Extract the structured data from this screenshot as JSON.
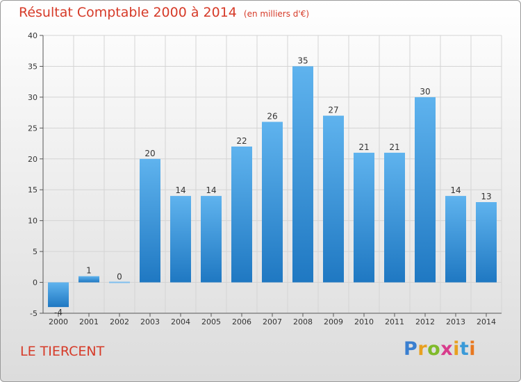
{
  "chart_data": {
    "type": "bar",
    "title": "Résultat Comptable 2000 à 2014",
    "subtitle": "(en milliers d'€)",
    "categories": [
      "2000",
      "2001",
      "2002",
      "2003",
      "2004",
      "2005",
      "2006",
      "2007",
      "2008",
      "2009",
      "2010",
      "2011",
      "2012",
      "2013",
      "2014"
    ],
    "values": [
      -4,
      1,
      0,
      20,
      14,
      14,
      22,
      26,
      35,
      27,
      21,
      21,
      30,
      14,
      13
    ],
    "ylim": [
      -5,
      40
    ],
    "yticks": [
      -5,
      0,
      5,
      10,
      15,
      20,
      25,
      30,
      35,
      40
    ],
    "xlabel": "",
    "ylabel": "",
    "grid": true,
    "colors": {
      "bar_light": "#5fb3ee",
      "bar_dark": "#1f78c2",
      "title": "#d63a28"
    }
  },
  "location": "LE TIERCENT",
  "brand": {
    "letters": [
      "P",
      "r",
      "o",
      "x",
      "i",
      "t",
      "i"
    ],
    "colors": [
      "#3a7fd0",
      "#e8a020",
      "#7fba2a",
      "#d83c8c",
      "#e8a020",
      "#3a9ad8",
      "#e87820"
    ]
  }
}
